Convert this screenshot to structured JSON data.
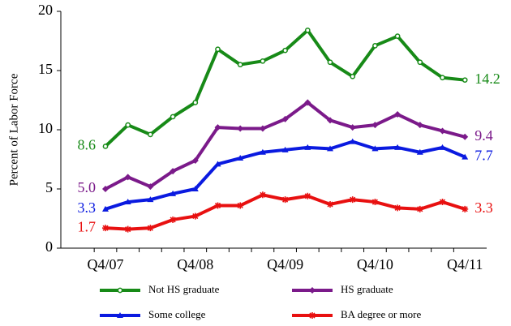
{
  "chart_data": {
    "type": "line",
    "y_label": "Percent of Labor Force",
    "categories": [
      "Q4/07",
      null,
      null,
      null,
      "Q4/08",
      null,
      null,
      null,
      "Q4/09",
      null,
      null,
      null,
      "Q4/10",
      null,
      null,
      null,
      "Q4/11"
    ],
    "ylim": [
      0,
      20
    ],
    "yticks": [
      0,
      5,
      10,
      15,
      20
    ],
    "grid": false,
    "legend": "bottom",
    "series": [
      {
        "name": "Not HS graduate",
        "color": "#178a17",
        "marker": "circle",
        "values": [
          8.6,
          10.4,
          9.6,
          11.1,
          12.3,
          16.8,
          15.5,
          15.8,
          16.7,
          18.4,
          15.7,
          14.5,
          17.1,
          17.9,
          15.7,
          14.4,
          14.2
        ],
        "value_labels": [
          "8.6",
          null,
          null,
          null,
          null,
          null,
          null,
          null,
          null,
          null,
          null,
          null,
          null,
          null,
          null,
          null,
          "14.2"
        ]
      },
      {
        "name": "HS graduate",
        "color": "#7b1a8a",
        "marker": "diamond",
        "values": [
          5.0,
          6.0,
          5.2,
          6.5,
          7.4,
          10.2,
          10.1,
          10.1,
          10.9,
          12.3,
          10.8,
          10.2,
          10.4,
          11.3,
          10.4,
          9.9,
          9.4
        ],
        "value_labels": [
          "5.0",
          null,
          null,
          null,
          null,
          null,
          null,
          null,
          null,
          null,
          null,
          null,
          null,
          null,
          null,
          null,
          "9.4"
        ]
      },
      {
        "name": "Some college",
        "color": "#0a1ae0",
        "marker": "triangle",
        "values": [
          3.3,
          3.9,
          4.1,
          4.6,
          5.0,
          7.1,
          7.6,
          8.1,
          8.3,
          8.5,
          8.4,
          9.0,
          8.4,
          8.5,
          8.1,
          8.5,
          7.7
        ],
        "value_labels": [
          "3.3",
          null,
          null,
          null,
          null,
          null,
          null,
          null,
          null,
          null,
          null,
          null,
          null,
          null,
          null,
          null,
          "7.7"
        ]
      },
      {
        "name": "BA degree or more",
        "color": "#e81010",
        "marker": "star",
        "values": [
          1.7,
          1.6,
          1.7,
          2.4,
          2.7,
          3.6,
          3.6,
          4.5,
          4.1,
          4.4,
          3.7,
          4.1,
          3.9,
          3.4,
          3.3,
          3.9,
          3.3
        ],
        "value_labels": [
          "1.7",
          null,
          null,
          null,
          null,
          null,
          null,
          null,
          null,
          null,
          null,
          null,
          null,
          null,
          null,
          null,
          "3.3"
        ]
      }
    ]
  }
}
